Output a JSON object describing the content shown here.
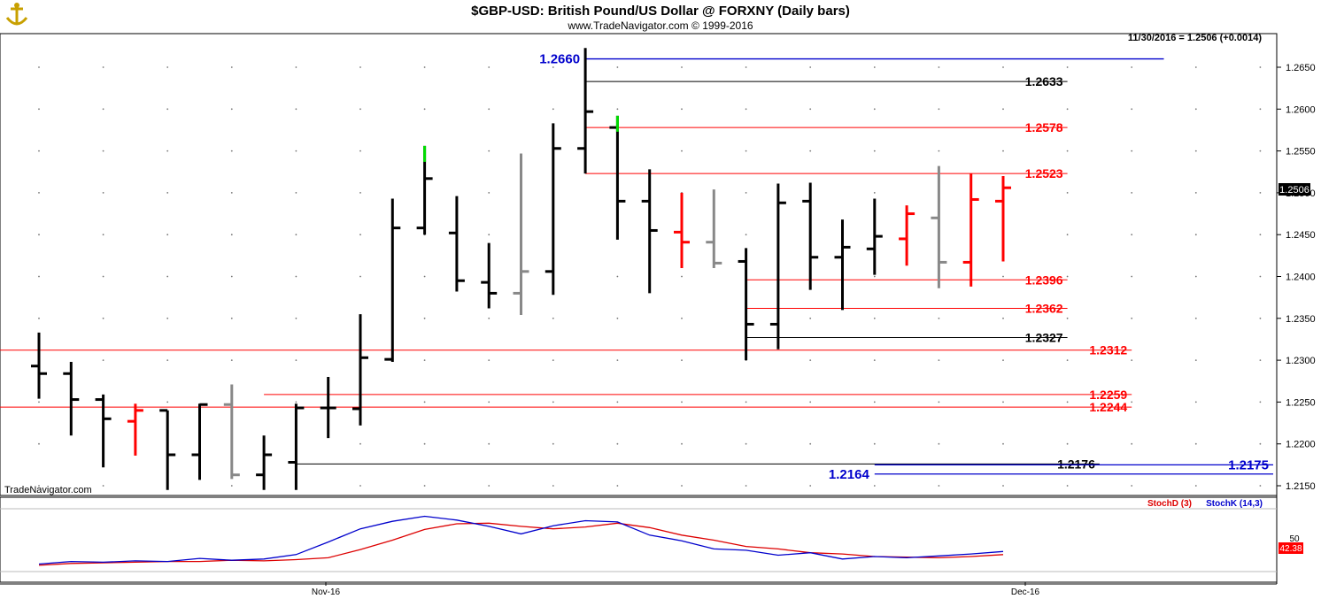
{
  "header": {
    "title": "$GBP-USD:  British Pound/US Dollar @ FORXNY  (Daily bars)",
    "copyright": "www.TradeNavigator.com © 1999-2016",
    "quote": "11/30/2016 = 1.2506 (+0.0014)",
    "watermark": "TradeNavigator.com",
    "logo_icon": "anchor-ship-logo-icon"
  },
  "colors": {
    "bar_up": "#000000",
    "bar_down_red": "#ff0000",
    "bar_gray": "#888888",
    "level_red": "#ff0000",
    "level_black": "#000000",
    "level_blue": "#0000cc",
    "stoch_d": "#dd0000",
    "stoch_k": "#0000cc"
  },
  "chart_data": [
    {
      "type": "ohlc",
      "title": "$GBP-USD:  British Pound/US Dollar @ FORXNY  (Daily bars)",
      "ylim": [
        1.2145,
        1.2675
      ],
      "y_ticks": [
        "1.2650",
        "1.2600",
        "1.2550",
        "1.2500",
        "1.2450",
        "1.2400",
        "1.2350",
        "1.2300",
        "1.2250",
        "1.2200",
        "1.2150"
      ],
      "x_ticks": [
        "Nov-16",
        "Dec-16"
      ],
      "last_price_label": "1.2506",
      "bars": [
        {
          "o": 1.2293,
          "h": 1.2333,
          "l": 1.2254,
          "c": 1.2284,
          "col": "k"
        },
        {
          "o": 1.2284,
          "h": 1.2298,
          "l": 1.221,
          "c": 1.2253,
          "col": "k"
        },
        {
          "o": 1.2253,
          "h": 1.2259,
          "l": 1.2172,
          "c": 1.223,
          "col": "k"
        },
        {
          "o": 1.2227,
          "h": 1.2248,
          "l": 1.2186,
          "c": 1.224,
          "col": "r"
        },
        {
          "o": 1.224,
          "h": 1.224,
          "l": 1.2145,
          "c": 1.2187,
          "col": "k"
        },
        {
          "o": 1.2187,
          "h": 1.2248,
          "l": 1.2157,
          "c": 1.2247,
          "col": "k"
        },
        {
          "o": 1.2247,
          "h": 1.2271,
          "l": 1.2158,
          "c": 1.2163,
          "col": "g"
        },
        {
          "o": 1.2163,
          "h": 1.221,
          "l": 1.2145,
          "c": 1.2187,
          "col": "k"
        },
        {
          "o": 1.2178,
          "h": 1.2248,
          "l": 1.2145,
          "c": 1.2243,
          "col": "k"
        },
        {
          "o": 1.2243,
          "h": 1.228,
          "l": 1.2207,
          "c": 1.2243,
          "col": "k"
        },
        {
          "o": 1.2242,
          "h": 1.2355,
          "l": 1.2222,
          "c": 1.2303,
          "col": "k"
        },
        {
          "o": 1.2301,
          "h": 1.2493,
          "l": 1.2298,
          "c": 1.2458,
          "col": "k"
        },
        {
          "o": 1.2458,
          "h": 1.2556,
          "l": 1.245,
          "c": 1.2517,
          "col": "k"
        },
        {
          "o": 1.2452,
          "h": 1.2496,
          "l": 1.2382,
          "c": 1.2395,
          "col": "k"
        },
        {
          "o": 1.2393,
          "h": 1.244,
          "l": 1.2362,
          "c": 1.238,
          "col": "k"
        },
        {
          "o": 1.238,
          "h": 1.2547,
          "l": 1.2354,
          "c": 1.2406,
          "col": "g"
        },
        {
          "o": 1.2406,
          "h": 1.2583,
          "l": 1.2378,
          "c": 1.2553,
          "col": "k"
        },
        {
          "o": 1.2553,
          "h": 1.2673,
          "l": 1.2523,
          "c": 1.2597,
          "col": "k"
        },
        {
          "o": 1.2578,
          "h": 1.2592,
          "l": 1.2444,
          "c": 1.249,
          "col": "k"
        },
        {
          "o": 1.249,
          "h": 1.2528,
          "l": 1.238,
          "c": 1.2455,
          "col": "k"
        },
        {
          "o": 1.2453,
          "h": 1.25,
          "l": 1.241,
          "c": 1.2441,
          "col": "r"
        },
        {
          "o": 1.2441,
          "h": 1.2504,
          "l": 1.241,
          "c": 1.2416,
          "col": "g"
        },
        {
          "o": 1.2418,
          "h": 1.2434,
          "l": 1.23,
          "c": 1.2343,
          "col": "k"
        },
        {
          "o": 1.2343,
          "h": 1.2511,
          "l": 1.2313,
          "c": 1.2488,
          "col": "k"
        },
        {
          "o": 1.249,
          "h": 1.2512,
          "l": 1.2384,
          "c": 1.2423,
          "col": "k"
        },
        {
          "o": 1.2423,
          "h": 1.2468,
          "l": 1.236,
          "c": 1.2435,
          "col": "k"
        },
        {
          "o": 1.2433,
          "h": 1.2493,
          "l": 1.2402,
          "c": 1.2448,
          "col": "k"
        },
        {
          "o": 1.2445,
          "h": 1.2485,
          "l": 1.2413,
          "c": 1.2475,
          "col": "r"
        },
        {
          "o": 1.247,
          "h": 1.2532,
          "l": 1.2386,
          "c": 1.2417,
          "col": "g"
        },
        {
          "o": 1.2417,
          "h": 1.2523,
          "l": 1.2388,
          "c": 1.2492,
          "col": "r"
        },
        {
          "o": 1.249,
          "h": 1.252,
          "l": 1.2418,
          "c": 1.2506,
          "col": "r"
        }
      ],
      "green_marks": [
        12,
        18
      ],
      "levels": [
        {
          "value": 1.266,
          "label": "1.2660",
          "color": "blue",
          "from_bar": 17,
          "to_bar": 35,
          "label_side": "left"
        },
        {
          "value": 1.2633,
          "label": "1.2633",
          "color": "black",
          "from_bar": 17,
          "to_bar": 32,
          "label_side": "right"
        },
        {
          "value": 1.2578,
          "label": "1.2578",
          "color": "red",
          "from_bar": 17,
          "to_bar": 32,
          "label_side": "right"
        },
        {
          "value": 1.2523,
          "label": "1.2523",
          "color": "red",
          "from_bar": 17,
          "to_bar": 32,
          "label_side": "right"
        },
        {
          "value": 1.2396,
          "label": "1.2396",
          "color": "red",
          "from_bar": 22,
          "to_bar": 32,
          "label_side": "right"
        },
        {
          "value": 1.2362,
          "label": "1.2362",
          "color": "red",
          "from_bar": 22,
          "to_bar": 32,
          "label_side": "right"
        },
        {
          "value": 1.2327,
          "label": "1.2327",
          "color": "black",
          "from_bar": 22,
          "to_bar": 32,
          "label_side": "right"
        },
        {
          "value": 1.2312,
          "label": "1.2312",
          "color": "red",
          "from_bar": -1,
          "to_bar": 34,
          "label_side": "right"
        },
        {
          "value": 1.2259,
          "label": "1.2259",
          "color": "red",
          "from_bar": 7,
          "to_bar": 34,
          "label_side": "right"
        },
        {
          "value": 1.2244,
          "label": "1.2244",
          "color": "red",
          "from_bar": -1,
          "to_bar": 34,
          "label_side": "right"
        },
        {
          "value": 1.2176,
          "label": "1.2176",
          "color": "black",
          "from_bar": 8,
          "to_bar": 33,
          "label_side": "right"
        },
        {
          "value": 1.2175,
          "label": "1.2175",
          "color": "blue",
          "from_bar": 26,
          "to_bar": 40,
          "label_side": "right"
        },
        {
          "value": 1.2164,
          "label": "1.2164",
          "color": "blue",
          "from_bar": 26,
          "to_bar": 40,
          "label_side": "left"
        }
      ]
    },
    {
      "type": "line",
      "title": "",
      "legend": [
        "StochD (3)",
        "StochK (14,3)"
      ],
      "y_label_right": "42.38",
      "y_tick": "50",
      "ylim": [
        0,
        100
      ],
      "series": [
        {
          "name": "StochD (3)",
          "values": [
            10,
            13,
            14,
            15,
            16,
            16,
            18,
            17,
            19,
            22,
            35,
            50,
            67,
            76,
            77,
            72,
            68,
            71,
            77,
            70,
            58,
            50,
            40,
            36,
            30,
            28,
            24,
            23,
            22,
            24,
            27
          ]
        },
        {
          "name": "StochK (14,3)",
          "values": [
            12,
            16,
            15,
            17,
            16,
            21,
            18,
            20,
            27,
            47,
            68,
            80,
            88,
            82,
            72,
            60,
            73,
            81,
            79,
            58,
            49,
            36,
            34,
            26,
            30,
            20,
            24,
            22,
            25,
            28,
            32
          ]
        }
      ]
    }
  ]
}
